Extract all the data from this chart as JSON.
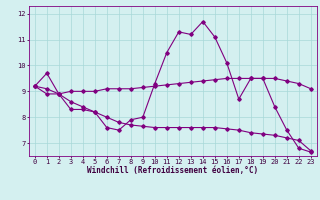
{
  "xlabel": "Windchill (Refroidissement éolien,°C)",
  "bg_color": "#d4f0f0",
  "line_color": "#800080",
  "grid_color": "#a8d8d8",
  "xlim": [
    -0.5,
    23.5
  ],
  "ylim": [
    6.5,
    12.3
  ],
  "yticks": [
    7,
    8,
    9,
    10,
    11,
    12
  ],
  "xticks": [
    0,
    1,
    2,
    3,
    4,
    5,
    6,
    7,
    8,
    9,
    10,
    11,
    12,
    13,
    14,
    15,
    16,
    17,
    18,
    19,
    20,
    21,
    22,
    23
  ],
  "line1_x": [
    0,
    1,
    2,
    3,
    4,
    5,
    6,
    7,
    8,
    9,
    10,
    11,
    12,
    13,
    14,
    15,
    16,
    17,
    18,
    19,
    20,
    21,
    22,
    23
  ],
  "line1_y": [
    9.2,
    9.7,
    8.9,
    8.3,
    8.3,
    8.2,
    7.6,
    7.5,
    7.9,
    8.0,
    9.3,
    10.5,
    11.3,
    11.2,
    11.7,
    11.1,
    10.1,
    8.7,
    9.5,
    9.5,
    8.4,
    7.5,
    6.8,
    6.65
  ],
  "line2_x": [
    0,
    1,
    2,
    3,
    4,
    5,
    6,
    7,
    8,
    9,
    10,
    11,
    12,
    13,
    14,
    15,
    16,
    17,
    18,
    19,
    20,
    21,
    22,
    23
  ],
  "line2_y": [
    9.2,
    8.9,
    8.9,
    9.0,
    9.0,
    9.0,
    9.1,
    9.1,
    9.1,
    9.15,
    9.2,
    9.25,
    9.3,
    9.35,
    9.4,
    9.45,
    9.5,
    9.5,
    9.5,
    9.5,
    9.5,
    9.4,
    9.3,
    9.1
  ],
  "line3_x": [
    0,
    1,
    2,
    3,
    4,
    5,
    6,
    7,
    8,
    9,
    10,
    11,
    12,
    13,
    14,
    15,
    16,
    17,
    18,
    19,
    20,
    21,
    22,
    23
  ],
  "line3_y": [
    9.2,
    9.1,
    8.9,
    8.6,
    8.4,
    8.2,
    8.0,
    7.8,
    7.7,
    7.65,
    7.6,
    7.6,
    7.6,
    7.6,
    7.6,
    7.6,
    7.55,
    7.5,
    7.4,
    7.35,
    7.3,
    7.2,
    7.1,
    6.7
  ],
  "tick_fontsize": 5.0,
  "xlabel_fontsize": 5.5
}
